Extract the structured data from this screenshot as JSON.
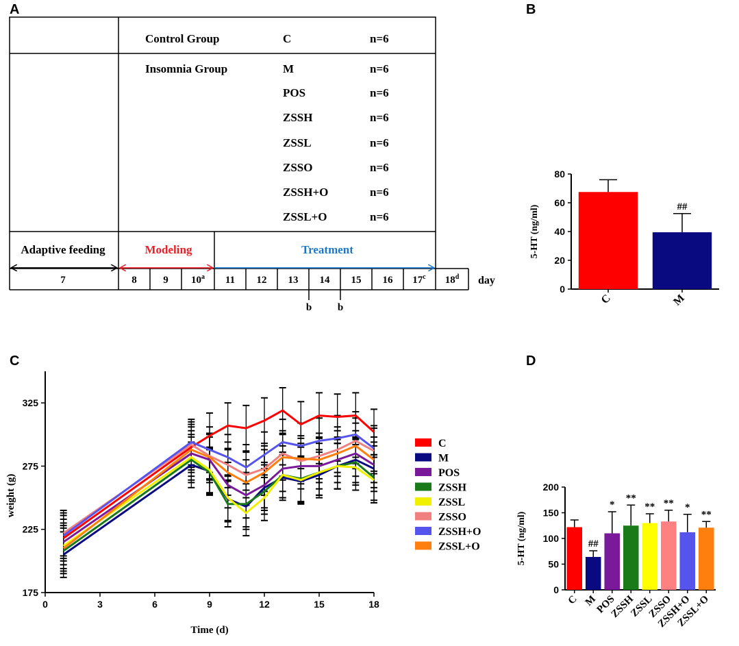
{
  "panels": {
    "a": "A",
    "b": "B",
    "c": "C",
    "d": "D"
  },
  "design": {
    "groups": [
      {
        "name": "Control Group",
        "code": "C",
        "n": "n=6"
      },
      {
        "name": "Insomnia Group",
        "code": "M",
        "n": "n=6"
      },
      {
        "name": "",
        "code": "POS",
        "n": "n=6"
      },
      {
        "name": "",
        "code": "ZSSH",
        "n": "n=6"
      },
      {
        "name": "",
        "code": "ZSSL",
        "n": "n=6"
      },
      {
        "name": "",
        "code": "ZSSO",
        "n": "n=6"
      },
      {
        "name": "",
        "code": "ZSSH+O",
        "n": "n=6"
      },
      {
        "name": "",
        "code": "ZSSL+O",
        "n": "n=6"
      }
    ],
    "phases": {
      "adaptive": "Adaptive feeding",
      "modeling": "Modeling",
      "treatment": "Treatment"
    },
    "days": [
      {
        "num": "7",
        "sup": ""
      },
      {
        "num": "8",
        "sup": ""
      },
      {
        "num": "9",
        "sup": ""
      },
      {
        "num": "10",
        "sup": "a"
      },
      {
        "num": "11",
        "sup": ""
      },
      {
        "num": "12",
        "sup": ""
      },
      {
        "num": "13",
        "sup": ""
      },
      {
        "num": "14",
        "sup": ""
      },
      {
        "num": "15",
        "sup": ""
      },
      {
        "num": "16",
        "sup": ""
      },
      {
        "num": "17",
        "sup": "c"
      },
      {
        "num": "18",
        "sup": "d"
      }
    ],
    "day_label": "day",
    "markers": [
      "b",
      "b"
    ],
    "colors": {
      "modeling": "#e8202a",
      "treatment": "#1f77c4"
    }
  },
  "chart_data": [
    {
      "id": "B",
      "type": "bar",
      "categories": [
        "C",
        "M"
      ],
      "values": [
        67.5,
        39.5
      ],
      "errors": [
        8.5,
        13
      ],
      "colors": [
        "#ff0000",
        "#0a0a80"
      ],
      "annotations": [
        "",
        "##"
      ],
      "ylabel": "5-HT (ng/ml)",
      "ylim": [
        0,
        80
      ],
      "yticks": [
        "0",
        "20",
        "40",
        "60",
        "80"
      ]
    },
    {
      "id": "C",
      "type": "line",
      "title": "",
      "xlabel": "Time (d)",
      "ylabel": "weight (g)",
      "xlim": [
        0,
        18
      ],
      "ylim": [
        175,
        350
      ],
      "xticks": [
        "0",
        "3",
        "6",
        "9",
        "12",
        "15",
        "18"
      ],
      "yticks": [
        "175",
        "225",
        "275",
        "325"
      ],
      "x": [
        1,
        8,
        9,
        10,
        11,
        12,
        13,
        14,
        15,
        16,
        17,
        18
      ],
      "series": [
        {
          "name": "C",
          "color": "#ff0000",
          "values": [
            218,
            290,
            299,
            307,
            305,
            311,
            319,
            308,
            315,
            314,
            315,
            302
          ]
        },
        {
          "name": "M",
          "color": "#0a0a80",
          "values": [
            205,
            276,
            271,
            249,
            243,
            258,
            266,
            263,
            268,
            275,
            280,
            273
          ]
        },
        {
          "name": "POS",
          "color": "#7a1a9a",
          "values": [
            215,
            285,
            280,
            260,
            252,
            260,
            273,
            275,
            275,
            280,
            285,
            276
          ]
        },
        {
          "name": "ZSSH",
          "color": "#1a7a1a",
          "values": [
            208,
            280,
            270,
            245,
            245,
            255,
            268,
            265,
            270,
            275,
            278,
            266
          ]
        },
        {
          "name": "ZSSL",
          "color": "#f0f000",
          "values": [
            212,
            282,
            272,
            250,
            238,
            250,
            268,
            264,
            270,
            275,
            274,
            264
          ]
        },
        {
          "name": "ZSSO",
          "color": "#f08080",
          "values": [
            222,
            292,
            283,
            276,
            268,
            273,
            285,
            279,
            283,
            288,
            295,
            287
          ]
        },
        {
          "name": "ZSSH+O",
          "color": "#5555ee",
          "values": [
            220,
            294,
            288,
            282,
            274,
            284,
            294,
            291,
            295,
            297,
            300,
            289
          ]
        },
        {
          "name": "ZSSL+O",
          "color": "#ff7f0e",
          "values": [
            210,
            288,
            282,
            270,
            262,
            270,
            282,
            281,
            280,
            285,
            291,
            280
          ]
        }
      ],
      "error": 18
    },
    {
      "id": "D",
      "type": "bar",
      "categories": [
        "C",
        "M",
        "POS",
        "ZSSH",
        "ZSSL",
        "ZSSO",
        "ZSSH+O",
        "ZSSL+O"
      ],
      "values": [
        122,
        64,
        110,
        125,
        130,
        133,
        112,
        121
      ],
      "errors": [
        14,
        12,
        42,
        40,
        18,
        22,
        35,
        12
      ],
      "colors": [
        "#ff0000",
        "#0a0a80",
        "#7a1a9a",
        "#1a7a1a",
        "#ffff00",
        "#ff8080",
        "#5555ee",
        "#ff7f0e"
      ],
      "annotations": [
        "",
        "##",
        "*",
        "**",
        "**",
        "**",
        "*",
        "**"
      ],
      "ylabel": "5-HT (ng/ml)",
      "ylim": [
        0,
        200
      ],
      "yticks": [
        "0",
        "50",
        "100",
        "150",
        "200"
      ]
    }
  ]
}
